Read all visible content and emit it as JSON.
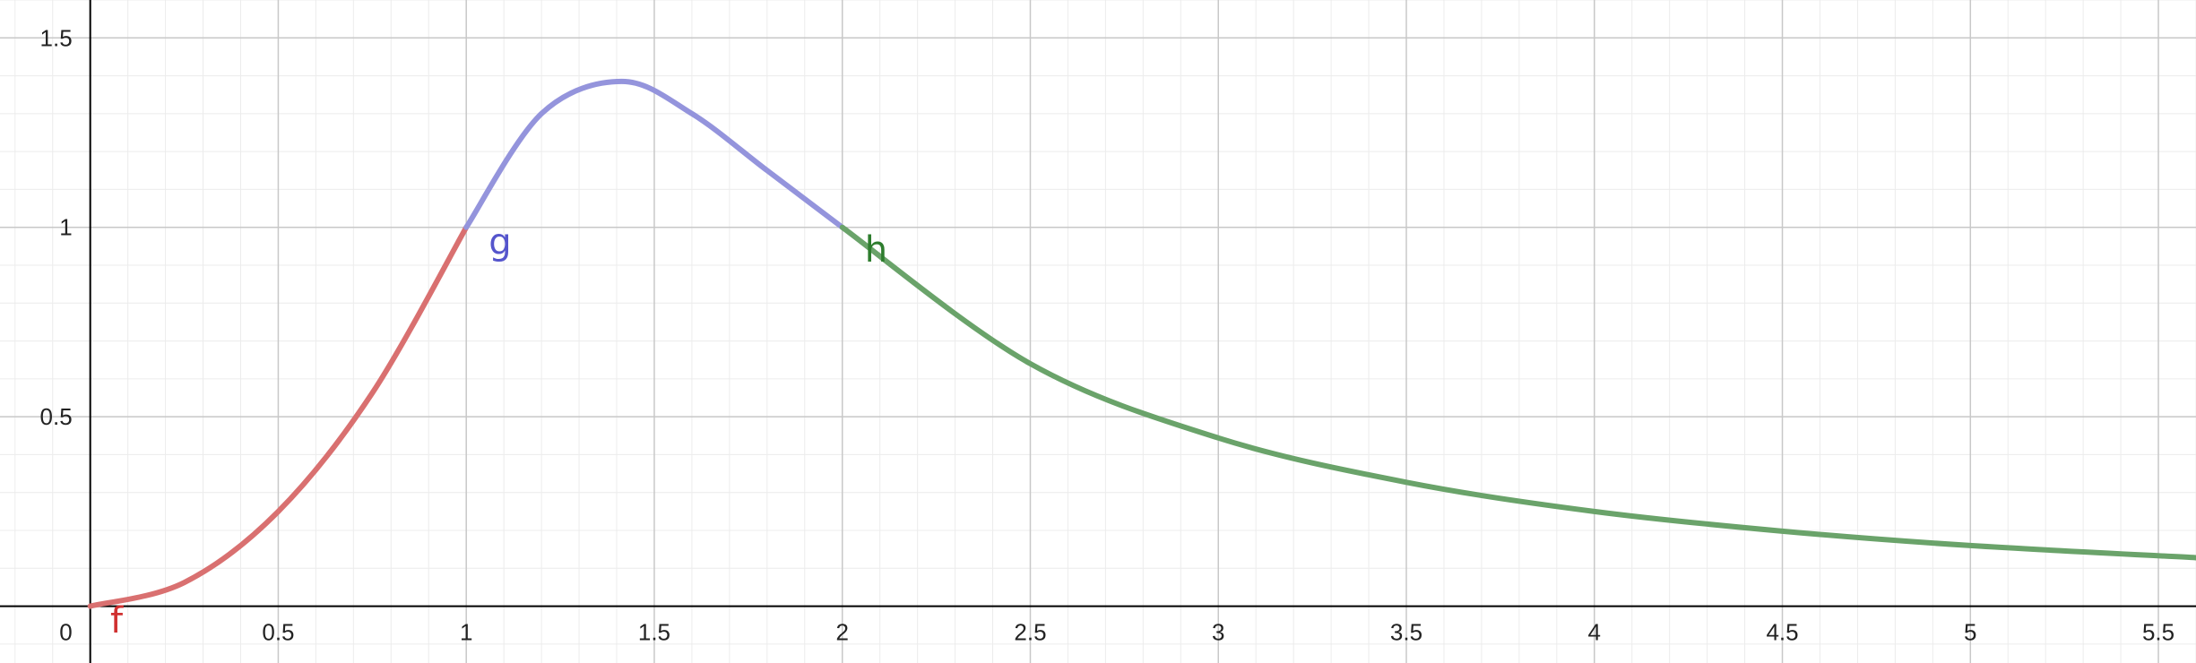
{
  "chart_data": {
    "type": "line",
    "title": "",
    "xlabel": "",
    "ylabel": "",
    "xlim": [
      -0.24,
      5.6
    ],
    "ylim": [
      -0.15,
      1.6
    ],
    "grid": true,
    "x_ticks": [
      0.5,
      1,
      1.5,
      2,
      2.5,
      3,
      3.5,
      4,
      4.5,
      5,
      5.5
    ],
    "x_tick_labels": [
      "0.5",
      "1",
      "1.5",
      "2",
      "2.5",
      "3",
      "3.5",
      "4",
      "4.5",
      "5",
      "5.5"
    ],
    "y_ticks": [
      0.5,
      1,
      1.5
    ],
    "y_tick_labels": [
      "0.5",
      "1",
      "1.5"
    ],
    "origin_label": "0",
    "series": [
      {
        "name": "f",
        "color": "#d97070",
        "x": [
          0,
          0.25,
          0.5,
          0.75,
          1
        ],
        "y": [
          0,
          0.0625,
          0.25,
          0.5625,
          1
        ]
      },
      {
        "name": "g",
        "color": "#9494dc",
        "x": [
          1,
          1.2,
          1.414,
          1.6,
          1.8,
          2
        ],
        "y": [
          1,
          1.3,
          1.385,
          1.3,
          1.15,
          1
        ]
      },
      {
        "name": "h",
        "color": "#6aa36a",
        "x": [
          2,
          2.5,
          3,
          3.5,
          4,
          4.5,
          5,
          5.6
        ],
        "y": [
          1,
          0.64,
          0.444,
          0.327,
          0.25,
          0.198,
          0.16,
          0.128
        ]
      }
    ],
    "labels": [
      {
        "text": "f",
        "color": "#d03030"
      },
      {
        "text": "g",
        "color": "#5555cc"
      },
      {
        "text": "h",
        "color": "#2e7d2e"
      }
    ]
  }
}
